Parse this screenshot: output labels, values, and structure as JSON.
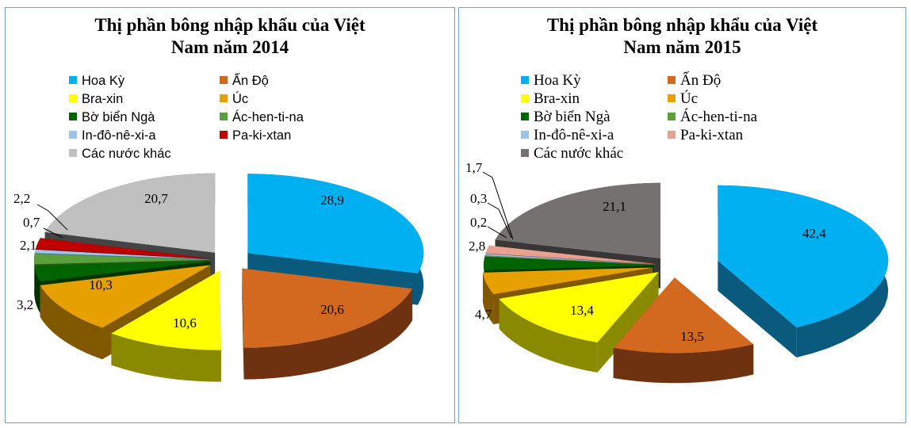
{
  "chart_data": [
    {
      "type": "pie",
      "title": "Thị phần bông nhập khẩu của Việt\nNam năm 2014",
      "legend": "top",
      "series": [
        {
          "name": "Hoa Kỳ",
          "value": 28.9,
          "label": "28,9",
          "color": "#00b0f0",
          "dark": "#0a5a7e"
        },
        {
          "name": "Ấn Độ",
          "value": 20.6,
          "label": "20,6",
          "color": "#d2691e",
          "dark": "#6e3210"
        },
        {
          "name": "Bra-xin",
          "value": 10.6,
          "label": "10,6",
          "color": "#ffff00",
          "dark": "#8a8a00"
        },
        {
          "name": "Úc",
          "value": 10.3,
          "label": "10,3",
          "color": "#e6a000",
          "dark": "#805800"
        },
        {
          "name": "Bờ biển Ngà",
          "value": 3.2,
          "label": "3,2",
          "color": "#006400",
          "dark": "#003300"
        },
        {
          "name": "Ác-hen-ti-na",
          "value": 2.1,
          "label": "2,1",
          "color": "#5aa03c",
          "dark": "#2f5a1e"
        },
        {
          "name": "In-đô-nê-xi-a",
          "value": 0.7,
          "label": "0,7",
          "color": "#9dc3e6",
          "dark": "#4f7191"
        },
        {
          "name": "Pa-ki-xtan",
          "value": 2.2,
          "label": "2,2",
          "color": "#c00000",
          "dark": "#600000"
        },
        {
          "name": "Các nước khác",
          "value": 20.7,
          "label": "20,7",
          "color": "#c0c0c0",
          "dark": "#444444"
        }
      ]
    },
    {
      "type": "pie",
      "title": "Thị phần bông nhập khẩu của Việt\nNam năm 2015",
      "legend": "top",
      "series": [
        {
          "name": "Hoa Kỳ",
          "value": 42.4,
          "label": "42,4",
          "color": "#00b0f0",
          "dark": "#0a5a7e"
        },
        {
          "name": "Ấn Độ",
          "value": 13.5,
          "label": "13,5",
          "color": "#d2691e",
          "dark": "#6e3210"
        },
        {
          "name": "Bra-xin",
          "value": 13.4,
          "label": "13,4",
          "color": "#ffff00",
          "dark": "#8a8a00"
        },
        {
          "name": "Úc",
          "value": 4.7,
          "label": "4,7",
          "color": "#e6a000",
          "dark": "#805800"
        },
        {
          "name": "Bờ biển Ngà",
          "value": 2.8,
          "label": "2,8",
          "color": "#006400",
          "dark": "#003300"
        },
        {
          "name": "Ác-hen-ti-na",
          "value": 0.2,
          "label": "0,2",
          "color": "#5aa03c",
          "dark": "#2f5a1e"
        },
        {
          "name": "In-đô-nê-xi-a",
          "value": 0.3,
          "label": "0,3",
          "color": "#9dc3e6",
          "dark": "#4f7191"
        },
        {
          "name": "Pa-ki-xtan",
          "value": 1.7,
          "label": "1,7",
          "color": "#e8a090",
          "dark": "#8a5548"
        },
        {
          "name": "Các nước khác",
          "value": 21.1,
          "label": "21,1",
          "color": "#767171",
          "dark": "#3a3636"
        }
      ]
    }
  ]
}
